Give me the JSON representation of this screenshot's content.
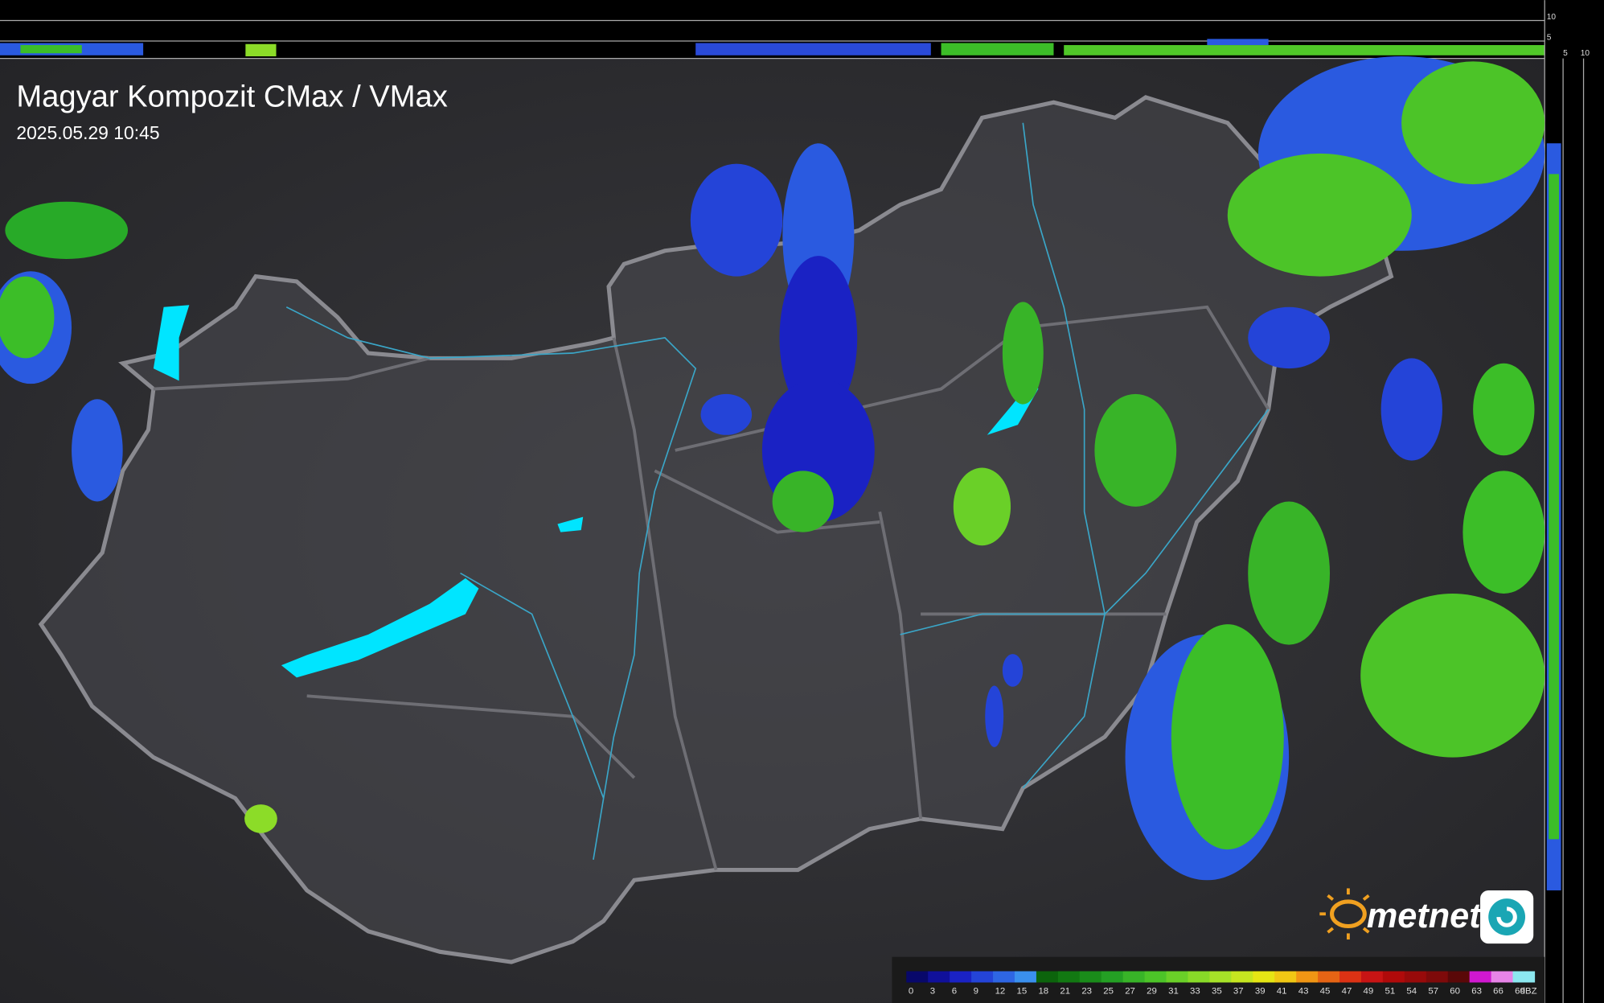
{
  "header": {
    "title": "Magyar Kompozit CMax / VMax",
    "timestamp": "2025.05.29 10:45"
  },
  "side_scale": {
    "top": [
      "10",
      "5"
    ],
    "bottom": [
      "5",
      "10"
    ]
  },
  "logo": "metnet",
  "legend": {
    "unit": "dBZ",
    "stops": [
      {
        "value": 0,
        "color": "#08086a"
      },
      {
        "value": 3,
        "color": "#10109a"
      },
      {
        "value": 6,
        "color": "#1a22c4"
      },
      {
        "value": 9,
        "color": "#2444d8"
      },
      {
        "value": 12,
        "color": "#2e66e4"
      },
      {
        "value": 15,
        "color": "#3a90ee"
      },
      {
        "value": 18,
        "color": "#0c640c"
      },
      {
        "value": 21,
        "color": "#127812"
      },
      {
        "value": 23,
        "color": "#1a8c1a"
      },
      {
        "value": 25,
        "color": "#24a024"
      },
      {
        "value": 27,
        "color": "#38b428"
      },
      {
        "value": 29,
        "color": "#4cc428"
      },
      {
        "value": 31,
        "color": "#6ad028"
      },
      {
        "value": 33,
        "color": "#88da28"
      },
      {
        "value": 35,
        "color": "#a6e228"
      },
      {
        "value": 37,
        "color": "#c6e620"
      },
      {
        "value": 39,
        "color": "#e6e614"
      },
      {
        "value": 41,
        "color": "#f0c814"
      },
      {
        "value": 43,
        "color": "#f09614"
      },
      {
        "value": 45,
        "color": "#e66414"
      },
      {
        "value": 47,
        "color": "#dc3214"
      },
      {
        "value": 49,
        "color": "#c81414"
      },
      {
        "value": 51,
        "color": "#b00a0a"
      },
      {
        "value": 54,
        "color": "#980a0a"
      },
      {
        "value": 57,
        "color": "#7e0a0a"
      },
      {
        "value": 60,
        "color": "#5a0808"
      },
      {
        "value": 63,
        "color": "#d018d0"
      },
      {
        "value": 66,
        "color": "#e884e8"
      },
      {
        "value": 69,
        "color": "#8ce8f0"
      }
    ]
  }
}
